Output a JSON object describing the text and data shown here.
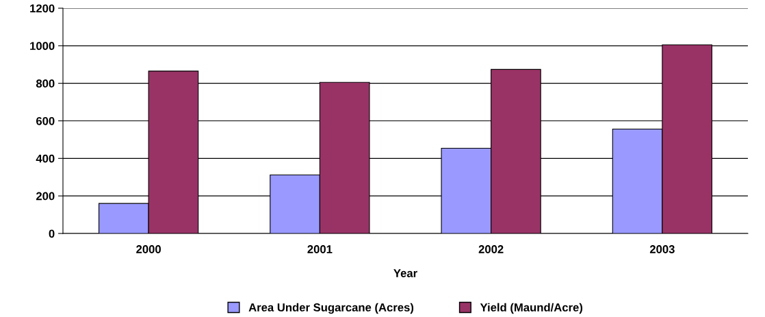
{
  "chart_data": {
    "type": "bar",
    "xlabel": "Year",
    "categories": [
      "2000",
      "2001",
      "2002",
      "2003"
    ],
    "series": [
      {
        "name": "Area Under Sugarcane (Acres)",
        "color": "#9999ff",
        "values": [
          160,
          312,
          454,
          556
        ]
      },
      {
        "name": "Yield (Maund/Acre)",
        "color": "#993366",
        "values": [
          865,
          805,
          874,
          1005
        ]
      }
    ],
    "ylim": [
      0,
      1200
    ],
    "yticks": [
      0,
      200,
      400,
      600,
      800,
      1000,
      1200
    ],
    "grid": "y",
    "legend": "bottom"
  }
}
